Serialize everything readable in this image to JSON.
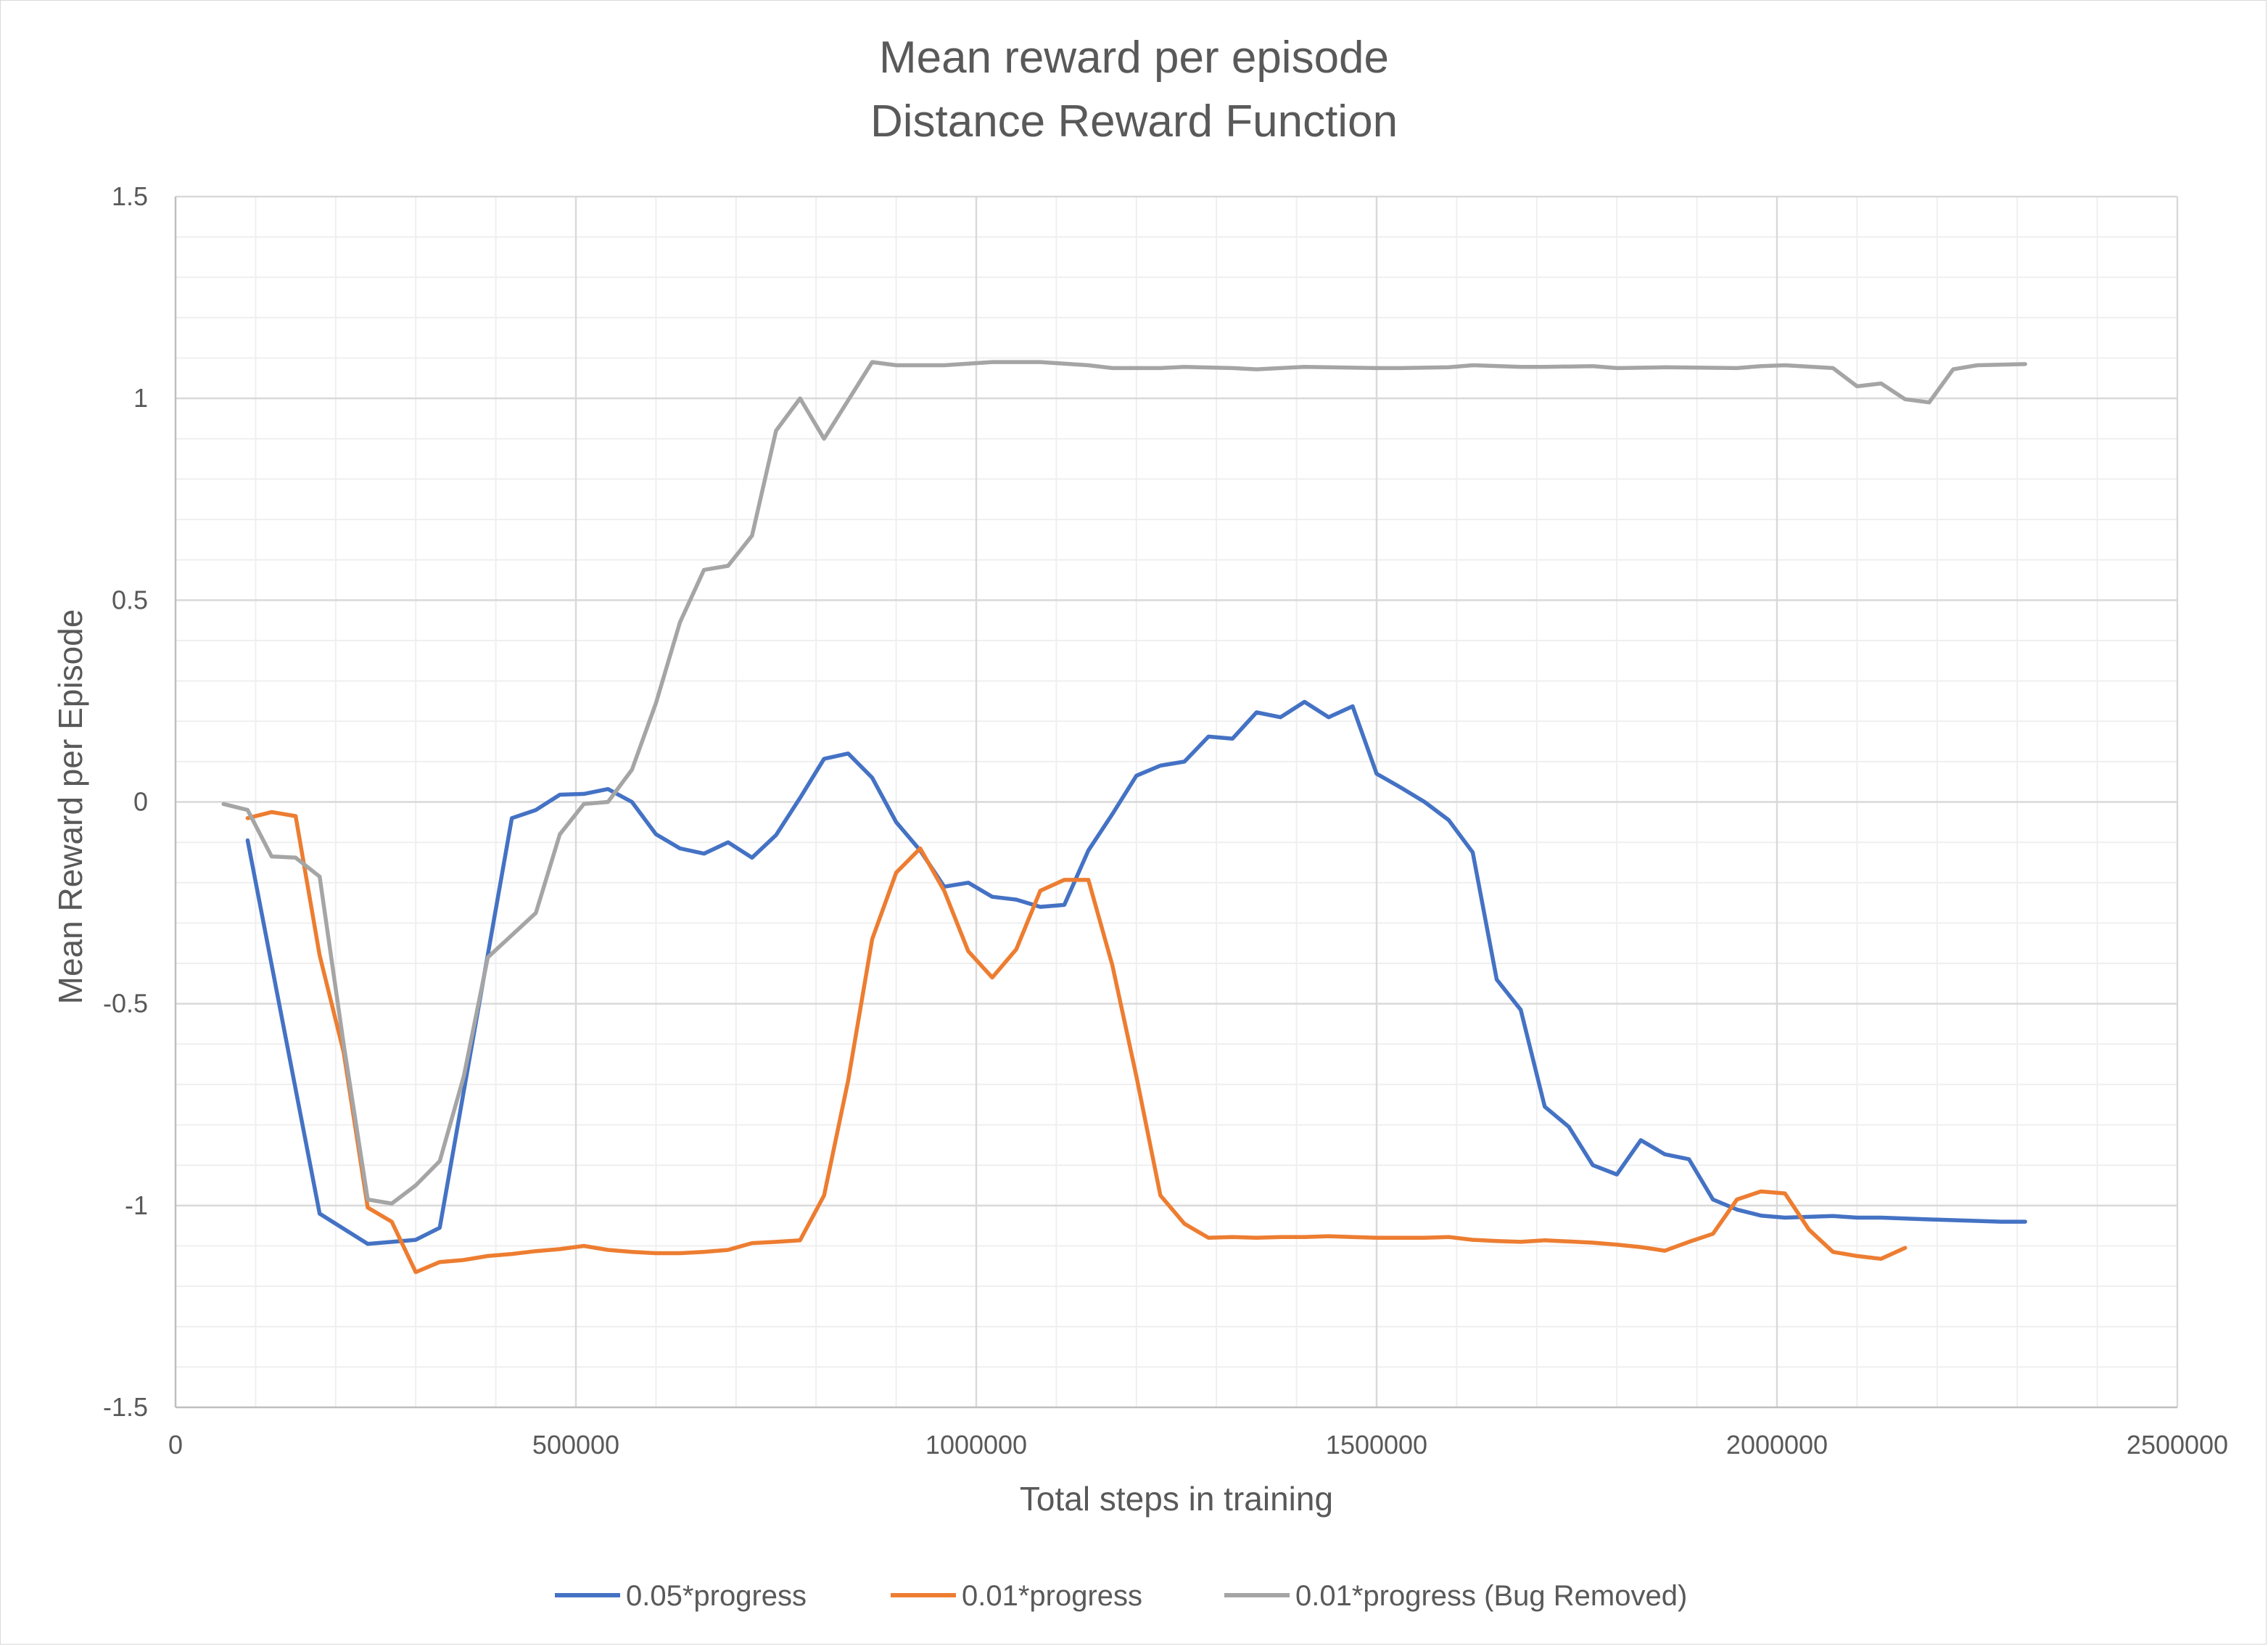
{
  "chart_data": {
    "type": "line",
    "title": "Mean reward per episode",
    "subtitle": "Distance Reward Function",
    "xlabel": "Total steps in training",
    "ylabel": "Mean Reward per Episode",
    "xlim": [
      0,
      2500000
    ],
    "ylim": [
      -1.5,
      1.5
    ],
    "x_ticks": [
      0,
      500000,
      1000000,
      1500000,
      2000000,
      2500000
    ],
    "x_tick_labels": [
      "0",
      "500000",
      "1000000",
      "1500000",
      "2000000",
      "2500000"
    ],
    "y_ticks": [
      -1.5,
      -1,
      -0.5,
      0,
      0.5,
      1,
      1.5
    ],
    "y_tick_labels": [
      "-1.5",
      "-1",
      "-0.5",
      "0",
      "0.5",
      "1",
      "1.5"
    ],
    "grid": true,
    "legend_position": "bottom",
    "series": [
      {
        "name": "0.05*progress",
        "color": "#4472C4",
        "points": [
          [
            90000,
            -0.095
          ],
          [
            180000,
            -1.02
          ],
          [
            240000,
            -1.095
          ],
          [
            300000,
            -1.085
          ],
          [
            330000,
            -1.055
          ],
          [
            420000,
            -0.04
          ],
          [
            450000,
            -0.02
          ],
          [
            480000,
            0.018
          ],
          [
            510000,
            0.02
          ],
          [
            540000,
            0.032
          ],
          [
            570000,
            0.0
          ],
          [
            600000,
            -0.08
          ],
          [
            630000,
            -0.115
          ],
          [
            660000,
            -0.128
          ],
          [
            690000,
            -0.1
          ],
          [
            720000,
            -0.138
          ],
          [
            750000,
            -0.082
          ],
          [
            780000,
            0.01
          ],
          [
            810000,
            0.107
          ],
          [
            840000,
            0.12
          ],
          [
            870000,
            0.06
          ],
          [
            900000,
            -0.05
          ],
          [
            930000,
            -0.12
          ],
          [
            960000,
            -0.21
          ],
          [
            990000,
            -0.2
          ],
          [
            1020000,
            -0.235
          ],
          [
            1050000,
            -0.242
          ],
          [
            1080000,
            -0.26
          ],
          [
            1110000,
            -0.255
          ],
          [
            1140000,
            -0.12
          ],
          [
            1170000,
            -0.03
          ],
          [
            1200000,
            0.065
          ],
          [
            1230000,
            0.09
          ],
          [
            1260000,
            0.1
          ],
          [
            1290000,
            0.162
          ],
          [
            1320000,
            0.157
          ],
          [
            1350000,
            0.222
          ],
          [
            1380000,
            0.21
          ],
          [
            1410000,
            0.248
          ],
          [
            1440000,
            0.21
          ],
          [
            1470000,
            0.237
          ],
          [
            1500000,
            0.07
          ],
          [
            1530000,
            0.036
          ],
          [
            1560000,
            0.0
          ],
          [
            1590000,
            -0.045
          ],
          [
            1620000,
            -0.125
          ],
          [
            1650000,
            -0.44
          ],
          [
            1680000,
            -0.515
          ],
          [
            1710000,
            -0.755
          ],
          [
            1740000,
            -0.805
          ],
          [
            1770000,
            -0.9
          ],
          [
            1800000,
            -0.923
          ],
          [
            1830000,
            -0.838
          ],
          [
            1860000,
            -0.873
          ],
          [
            1890000,
            -0.885
          ],
          [
            1920000,
            -0.985
          ],
          [
            1950000,
            -1.01
          ],
          [
            1980000,
            -1.025
          ],
          [
            2010000,
            -1.03
          ],
          [
            2070000,
            -1.026
          ],
          [
            2100000,
            -1.03
          ],
          [
            2130000,
            -1.03
          ],
          [
            2200000,
            -1.035
          ],
          [
            2280000,
            -1.04
          ],
          [
            2310000,
            -1.04
          ]
        ]
      },
      {
        "name": "0.01*progress",
        "color": "#ED7D31",
        "points": [
          [
            90000,
            -0.04
          ],
          [
            120000,
            -0.025
          ],
          [
            150000,
            -0.035
          ],
          [
            180000,
            -0.38
          ],
          [
            210000,
            -0.62
          ],
          [
            240000,
            -1.005
          ],
          [
            270000,
            -1.04
          ],
          [
            300000,
            -1.165
          ],
          [
            330000,
            -1.14
          ],
          [
            360000,
            -1.135
          ],
          [
            390000,
            -1.125
          ],
          [
            420000,
            -1.12
          ],
          [
            450000,
            -1.113
          ],
          [
            480000,
            -1.108
          ],
          [
            510000,
            -1.1
          ],
          [
            540000,
            -1.11
          ],
          [
            570000,
            -1.115
          ],
          [
            600000,
            -1.118
          ],
          [
            630000,
            -1.118
          ],
          [
            660000,
            -1.115
          ],
          [
            690000,
            -1.11
          ],
          [
            720000,
            -1.093
          ],
          [
            750000,
            -1.09
          ],
          [
            780000,
            -1.086
          ],
          [
            810000,
            -0.975
          ],
          [
            840000,
            -0.69
          ],
          [
            870000,
            -0.34
          ],
          [
            900000,
            -0.175
          ],
          [
            930000,
            -0.115
          ],
          [
            960000,
            -0.22
          ],
          [
            990000,
            -0.37
          ],
          [
            1020000,
            -0.435
          ],
          [
            1050000,
            -0.365
          ],
          [
            1080000,
            -0.22
          ],
          [
            1110000,
            -0.193
          ],
          [
            1140000,
            -0.193
          ],
          [
            1170000,
            -0.405
          ],
          [
            1200000,
            -0.68
          ],
          [
            1230000,
            -0.975
          ],
          [
            1260000,
            -1.045
          ],
          [
            1290000,
            -1.08
          ],
          [
            1320000,
            -1.078
          ],
          [
            1350000,
            -1.08
          ],
          [
            1380000,
            -1.078
          ],
          [
            1410000,
            -1.078
          ],
          [
            1440000,
            -1.076
          ],
          [
            1470000,
            -1.078
          ],
          [
            1500000,
            -1.08
          ],
          [
            1560000,
            -1.08
          ],
          [
            1590000,
            -1.078
          ],
          [
            1620000,
            -1.085
          ],
          [
            1650000,
            -1.088
          ],
          [
            1680000,
            -1.09
          ],
          [
            1710000,
            -1.086
          ],
          [
            1770000,
            -1.092
          ],
          [
            1800000,
            -1.097
          ],
          [
            1830000,
            -1.103
          ],
          [
            1860000,
            -1.112
          ],
          [
            1890000,
            -1.09
          ],
          [
            1920000,
            -1.07
          ],
          [
            1950000,
            -0.985
          ],
          [
            1980000,
            -0.965
          ],
          [
            2010000,
            -0.97
          ],
          [
            2040000,
            -1.06
          ],
          [
            2070000,
            -1.115
          ],
          [
            2100000,
            -1.125
          ],
          [
            2130000,
            -1.132
          ],
          [
            2160000,
            -1.105
          ]
        ]
      },
      {
        "name": "0.01*progress (Bug Removed)",
        "color": "#A5A5A5",
        "points": [
          [
            60000,
            -0.005
          ],
          [
            90000,
            -0.02
          ],
          [
            120000,
            -0.135
          ],
          [
            150000,
            -0.138
          ],
          [
            180000,
            -0.185
          ],
          [
            210000,
            -0.6
          ],
          [
            240000,
            -0.985
          ],
          [
            270000,
            -0.995
          ],
          [
            300000,
            -0.95
          ],
          [
            330000,
            -0.89
          ],
          [
            360000,
            -0.68
          ],
          [
            390000,
            -0.385
          ],
          [
            420000,
            -0.33
          ],
          [
            450000,
            -0.275
          ],
          [
            480000,
            -0.08
          ],
          [
            510000,
            -0.005
          ],
          [
            540000,
            0.0
          ],
          [
            570000,
            0.08
          ],
          [
            600000,
            0.245
          ],
          [
            630000,
            0.445
          ],
          [
            660000,
            0.575
          ],
          [
            690000,
            0.585
          ],
          [
            720000,
            0.66
          ],
          [
            750000,
            0.92
          ],
          [
            780000,
            1.0
          ],
          [
            810000,
            0.9
          ],
          [
            870000,
            1.09
          ],
          [
            900000,
            1.082
          ],
          [
            960000,
            1.082
          ],
          [
            1020000,
            1.09
          ],
          [
            1080000,
            1.09
          ],
          [
            1140000,
            1.082
          ],
          [
            1170000,
            1.075
          ],
          [
            1230000,
            1.075
          ],
          [
            1260000,
            1.078
          ],
          [
            1320000,
            1.075
          ],
          [
            1350000,
            1.072
          ],
          [
            1380000,
            1.075
          ],
          [
            1410000,
            1.078
          ],
          [
            1500000,
            1.075
          ],
          [
            1530000,
            1.075
          ],
          [
            1590000,
            1.077
          ],
          [
            1620000,
            1.082
          ],
          [
            1680000,
            1.078
          ],
          [
            1710000,
            1.078
          ],
          [
            1770000,
            1.08
          ],
          [
            1800000,
            1.075
          ],
          [
            1860000,
            1.077
          ],
          [
            1950000,
            1.075
          ],
          [
            1980000,
            1.08
          ],
          [
            2010000,
            1.082
          ],
          [
            2070000,
            1.075
          ],
          [
            2100000,
            1.03
          ],
          [
            2130000,
            1.037
          ],
          [
            2160000,
            0.998
          ],
          [
            2190000,
            0.99
          ],
          [
            2220000,
            1.072
          ],
          [
            2250000,
            1.082
          ],
          [
            2310000,
            1.085
          ]
        ]
      }
    ]
  }
}
